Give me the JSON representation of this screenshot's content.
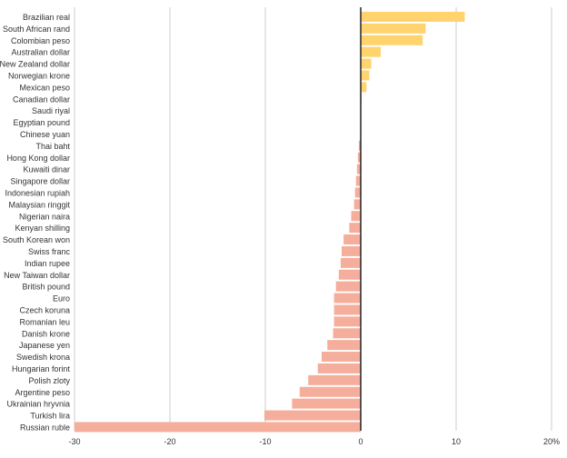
{
  "chart_data": {
    "type": "bar",
    "orientation": "horizontal",
    "title": "",
    "xlabel": "",
    "ylabel": "",
    "xlim": [
      -30,
      20
    ],
    "xticks": [
      -30,
      -20,
      -10,
      0,
      10,
      20
    ],
    "xtick_labels": [
      "-30",
      "-20",
      "-10",
      "0",
      "10",
      "20%"
    ],
    "grid": "vertical",
    "legend": "none",
    "colors": {
      "positive": "#FFD36E",
      "negative": "#F6AE9C",
      "zero_line": "#222222",
      "grid": "#cccccc",
      "text": "#333333"
    },
    "categories": [
      "Brazilian real",
      "South African rand",
      "Colombian peso",
      "Australian dollar",
      "New Zealand dollar",
      "Norwegian krone",
      "Mexican peso",
      "Canadian dollar",
      "Saudi riyal",
      "Egyptian pound",
      "Chinese yuan",
      "Thai baht",
      "Hong Kong dollar",
      "Kuwaiti dinar",
      "Singapore dollar",
      "Indonesian rupiah",
      "Malaysian ringgit",
      "Nigerian naira",
      "Kenyan shilling",
      "South Korean won",
      "Swiss franc",
      "Indian rupee",
      "New Taiwan dollar",
      "British pound",
      "Euro",
      "Czech koruna",
      "Romanian leu",
      "Danish krone",
      "Japanese yen",
      "Swedish krona",
      "Hungarian forint",
      "Polish zloty",
      "Argentine peso",
      "Ukrainian hryvnia",
      "Turkish lira",
      "Russian ruble"
    ],
    "values": [
      10.9,
      6.8,
      6.5,
      2.1,
      1.1,
      0.9,
      0.6,
      0.1,
      0.0,
      0.0,
      0.0,
      -0.2,
      -0.3,
      -0.4,
      -0.5,
      -0.6,
      -0.7,
      -1.0,
      -1.2,
      -1.8,
      -2.0,
      -2.1,
      -2.3,
      -2.6,
      -2.8,
      -2.8,
      -2.8,
      -2.9,
      -3.5,
      -4.1,
      -4.5,
      -5.5,
      -6.4,
      -7.2,
      -10.1,
      -30.0
    ]
  }
}
